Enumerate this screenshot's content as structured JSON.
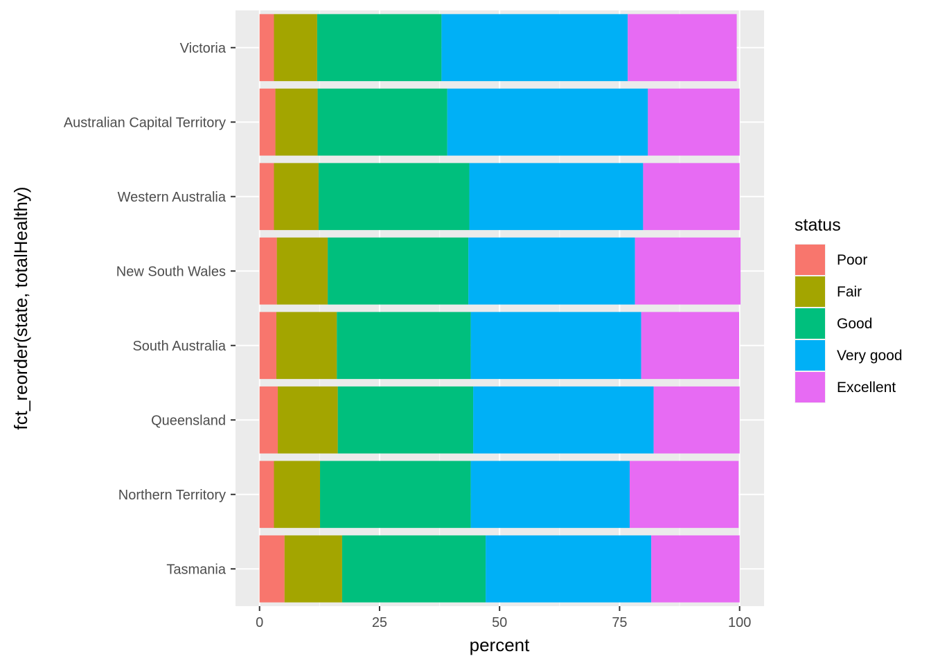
{
  "chart_data": {
    "type": "bar",
    "orientation": "horizontal",
    "stacked": true,
    "xlabel": "percent",
    "ylabel": "fct_reorder(state, totalHealthy)",
    "xlim": [
      0,
      100
    ],
    "xticks": [
      "0",
      "25",
      "50",
      "75",
      "100"
    ],
    "categories": [
      "Victoria",
      "Australian Capital Territory",
      "Western Australia",
      "New South Wales",
      "South Australia",
      "Queensland",
      "Northern Territory",
      "Tasmania"
    ],
    "series": [
      {
        "name": "Poor",
        "color": "#F8766D",
        "values": [
          3.0,
          3.3,
          3.0,
          3.6,
          3.5,
          3.8,
          3.0,
          5.2
        ]
      },
      {
        "name": "Fair",
        "color": "#A3A500",
        "values": [
          9.0,
          8.8,
          9.3,
          10.6,
          12.6,
          12.5,
          9.6,
          12.0
        ]
      },
      {
        "name": "Good",
        "color": "#00BF7D",
        "values": [
          25.9,
          27.0,
          31.4,
          29.3,
          27.9,
          28.2,
          31.4,
          29.9
        ]
      },
      {
        "name": "Very good",
        "color": "#00B0F6",
        "values": [
          38.8,
          41.8,
          36.2,
          34.7,
          35.5,
          37.6,
          33.1,
          34.5
        ]
      },
      {
        "name": "Excellent",
        "color": "#E76BF3",
        "values": [
          22.7,
          19.1,
          20.1,
          22.0,
          20.4,
          17.9,
          22.7,
          18.4
        ]
      }
    ],
    "legend": {
      "title": "status",
      "position": "right",
      "items": [
        "Poor",
        "Fair",
        "Good",
        "Very good",
        "Excellent"
      ]
    },
    "grid": true
  }
}
